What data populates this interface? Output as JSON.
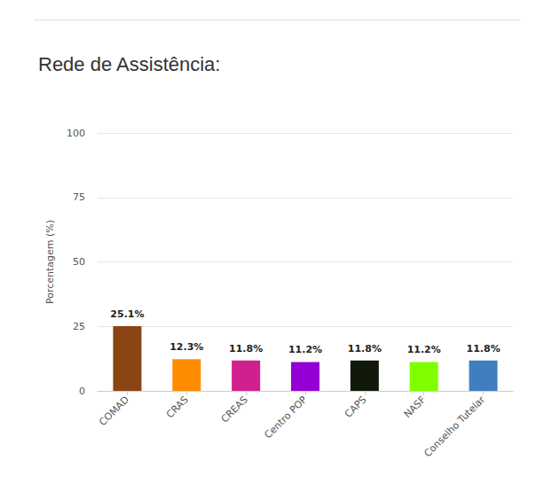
{
  "chart_data": {
    "type": "bar",
    "title": "Rede de Assistência:",
    "y_label": "Porcentagem (%)",
    "categories": [
      "COMAD",
      "CRAS",
      "CREAS",
      "Centro POP",
      "CAPS",
      "NASF",
      "Conselho Tutelar"
    ],
    "values": [
      25.1,
      12.3,
      11.8,
      11.2,
      11.8,
      11.2,
      11.8
    ],
    "value_labels": [
      "25.1%",
      "12.3%",
      "11.8%",
      "11.2%",
      "11.8%",
      "11.2%",
      "11.8%"
    ],
    "colors": [
      "#8b4513",
      "#ff8c00",
      "#d0208e",
      "#9400d3",
      "#111a0a",
      "#7fff00",
      "#3f7fbf"
    ],
    "ylim": [
      0,
      100
    ],
    "yticks": [
      0,
      25,
      50,
      75,
      100
    ],
    "grid": true,
    "data_labels": true
  }
}
